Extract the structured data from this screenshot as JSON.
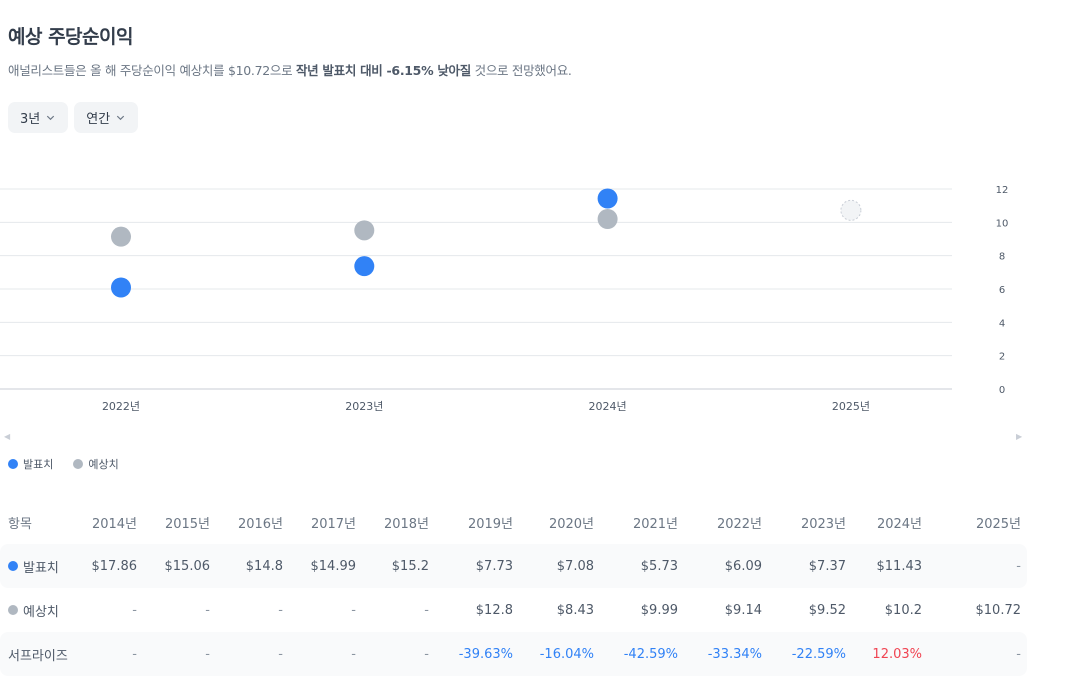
{
  "header": {
    "title": "예상 주당순이익",
    "subtitle_pre": "애널리스트들은 올 해 주당순이익 예상치를 $10.72으로 ",
    "subtitle_bold": "작년 발표치 대비 -6.15% 낮아질",
    "subtitle_post": " 것으로 전망했어요."
  },
  "filters": {
    "period": "3년",
    "interval": "연간"
  },
  "colors": {
    "actual": "#3182f6",
    "estimate": "#b0b8c1",
    "grid": "#e5e8eb"
  },
  "chart_data": {
    "type": "scatter",
    "categories": [
      "2022년",
      "2023년",
      "2024년",
      "2025년"
    ],
    "series": [
      {
        "name": "발표치",
        "values": [
          6.09,
          7.37,
          11.43,
          null
        ]
      },
      {
        "name": "예상치",
        "values": [
          9.14,
          9.52,
          10.2,
          10.72
        ]
      }
    ],
    "ylim": [
      0,
      12
    ],
    "yticks": [
      "0",
      "2",
      "4",
      "6",
      "8",
      "10",
      "12"
    ],
    "grid": true,
    "legend": "bottom-left",
    "y_axis_side": "right"
  },
  "legend": {
    "actual": "발표치",
    "estimate": "예상치"
  },
  "table": {
    "label_header": "항목",
    "years": [
      "2014년",
      "2015년",
      "2016년",
      "2017년",
      "2018년",
      "2019년",
      "2020년",
      "2021년",
      "2022년",
      "2023년",
      "2024년",
      "2025년"
    ],
    "rows": [
      {
        "label": "발표치",
        "dot": "actual",
        "values": [
          "$17.86",
          "$15.06",
          "$14.8",
          "$14.99",
          "$15.2",
          "$7.73",
          "$7.08",
          "$5.73",
          "$6.09",
          "$7.37",
          "$11.43",
          "-"
        ]
      },
      {
        "label": "예상치",
        "dot": "estimate",
        "values": [
          "-",
          "-",
          "-",
          "-",
          "-",
          "$12.8",
          "$8.43",
          "$9.99",
          "$9.14",
          "$9.52",
          "$10.2",
          "$10.72"
        ]
      },
      {
        "label": "서프라이즈",
        "dot": "",
        "values": [
          "-",
          "-",
          "-",
          "-",
          "-",
          "-39.63%",
          "-16.04%",
          "-42.59%",
          "-33.34%",
          "-22.59%",
          "12.03%",
          "-"
        ]
      }
    ]
  }
}
